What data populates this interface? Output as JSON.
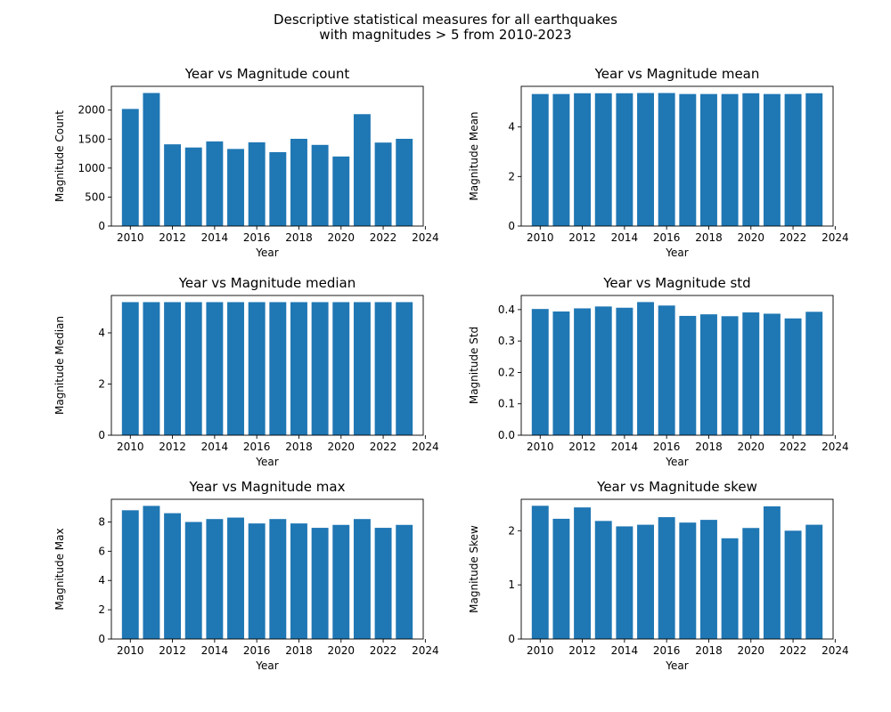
{
  "figure": {
    "title_line1": "Descriptive statistical measures for all earthquakes",
    "title_line2": "with magnitudes > 5 from 2010-2023",
    "bar_color": "#1f77b4"
  },
  "chart_data": [
    {
      "type": "bar",
      "title": "Year vs Magnitude count",
      "xlabel": "Year",
      "ylabel": "Magnitude Count",
      "x": [
        2010,
        2011,
        2012,
        2013,
        2014,
        2015,
        2016,
        2017,
        2018,
        2019,
        2020,
        2021,
        2022,
        2023
      ],
      "values": [
        2020,
        2295,
        1410,
        1355,
        1460,
        1330,
        1445,
        1275,
        1505,
        1400,
        1200,
        1930,
        1440,
        1505
      ],
      "xticks": [
        2010,
        2012,
        2014,
        2016,
        2018,
        2020,
        2022,
        2024
      ],
      "yticks": [
        "0",
        "500",
        "1000",
        "1500",
        "2000"
      ],
      "xlim": [
        2009.1,
        2023.9
      ],
      "ylim": [
        0,
        2410
      ]
    },
    {
      "type": "bar",
      "title": "Year vs Magnitude mean",
      "xlabel": "Year",
      "ylabel": "Magnitude Mean",
      "x": [
        2010,
        2011,
        2012,
        2013,
        2014,
        2015,
        2016,
        2017,
        2018,
        2019,
        2020,
        2021,
        2022,
        2023
      ],
      "values": [
        5.33,
        5.33,
        5.36,
        5.36,
        5.36,
        5.37,
        5.37,
        5.33,
        5.33,
        5.33,
        5.36,
        5.33,
        5.33,
        5.36
      ],
      "xticks": [
        2010,
        2012,
        2014,
        2016,
        2018,
        2020,
        2022,
        2024
      ],
      "yticks": [
        "0",
        "2",
        "4"
      ],
      "xlim": [
        2009.1,
        2023.9
      ],
      "ylim": [
        0,
        5.64
      ]
    },
    {
      "type": "bar",
      "title": "Year vs Magnitude median",
      "xlabel": "Year",
      "ylabel": "Magnitude Median",
      "x": [
        2010,
        2011,
        2012,
        2013,
        2014,
        2015,
        2016,
        2017,
        2018,
        2019,
        2020,
        2021,
        2022,
        2023
      ],
      "values": [
        5.2,
        5.2,
        5.2,
        5.2,
        5.2,
        5.2,
        5.2,
        5.2,
        5.2,
        5.2,
        5.2,
        5.2,
        5.2,
        5.2
      ],
      "xticks": [
        2010,
        2012,
        2014,
        2016,
        2018,
        2020,
        2022,
        2024
      ],
      "yticks": [
        "0",
        "2",
        "4"
      ],
      "xlim": [
        2009.1,
        2023.9
      ],
      "ylim": [
        0,
        5.46
      ]
    },
    {
      "type": "bar",
      "title": "Year vs Magnitude std",
      "xlabel": "Year",
      "ylabel": "Magnitude Std",
      "x": [
        2010,
        2011,
        2012,
        2013,
        2014,
        2015,
        2016,
        2017,
        2018,
        2019,
        2020,
        2021,
        2022,
        2023
      ],
      "values": [
        0.402,
        0.394,
        0.404,
        0.41,
        0.406,
        0.424,
        0.413,
        0.38,
        0.385,
        0.379,
        0.391,
        0.387,
        0.372,
        0.393
      ],
      "xticks": [
        2010,
        2012,
        2014,
        2016,
        2018,
        2020,
        2022,
        2024
      ],
      "yticks": [
        "0.0",
        "0.1",
        "0.2",
        "0.3",
        "0.4"
      ],
      "xlim": [
        2009.1,
        2023.9
      ],
      "ylim": [
        0,
        0.445
      ]
    },
    {
      "type": "bar",
      "title": "Year vs Magnitude max",
      "xlabel": "Year",
      "ylabel": "Magnitude Max",
      "x": [
        2010,
        2011,
        2012,
        2013,
        2014,
        2015,
        2016,
        2017,
        2018,
        2019,
        2020,
        2021,
        2022,
        2023
      ],
      "values": [
        8.8,
        9.1,
        8.6,
        8.0,
        8.2,
        8.3,
        7.9,
        8.2,
        7.9,
        7.6,
        7.8,
        8.2,
        7.6,
        7.8
      ],
      "xticks": [
        2010,
        2012,
        2014,
        2016,
        2018,
        2020,
        2022,
        2024
      ],
      "yticks": [
        "0",
        "2",
        "4",
        "6",
        "8"
      ],
      "xlim": [
        2009.1,
        2023.9
      ],
      "ylim": [
        0,
        9.55
      ]
    },
    {
      "type": "bar",
      "title": "Year vs Magnitude skew",
      "xlabel": "Year",
      "ylabel": "Magnitude Skew",
      "x": [
        2010,
        2011,
        2012,
        2013,
        2014,
        2015,
        2016,
        2017,
        2018,
        2019,
        2020,
        2021,
        2022,
        2023
      ],
      "values": [
        2.46,
        2.22,
        2.43,
        2.18,
        2.08,
        2.11,
        2.25,
        2.15,
        2.2,
        1.86,
        2.05,
        2.45,
        2.0,
        2.11
      ],
      "xticks": [
        2010,
        2012,
        2014,
        2016,
        2018,
        2020,
        2022,
        2024
      ],
      "yticks": [
        "0",
        "1",
        "2"
      ],
      "xlim": [
        2009.1,
        2023.9
      ],
      "ylim": [
        0,
        2.58
      ]
    }
  ]
}
